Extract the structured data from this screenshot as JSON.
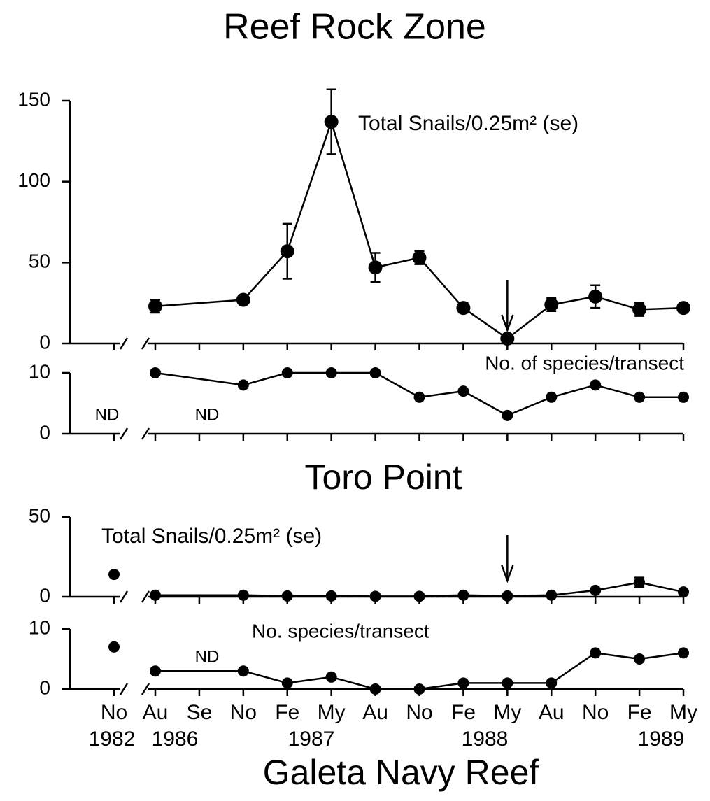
{
  "chart_data": [
    {
      "type": "line",
      "title": "Reef Rock Zone",
      "label": "Total Snails/0.25m² (se)",
      "color": "#000000",
      "values": [
        null,
        23,
        null,
        27,
        57,
        137,
        47,
        53,
        22,
        3,
        24,
        29,
        21,
        22
      ],
      "errors": [
        null,
        4,
        null,
        2,
        17,
        20,
        9,
        4,
        3,
        1,
        4,
        7,
        4,
        3
      ],
      "ylim": [
        0,
        150
      ],
      "yticks": [
        0,
        50,
        100,
        150
      ],
      "arrow_at": 9
    },
    {
      "type": "line",
      "label": "No. of species/transect",
      "color": "#000000",
      "values": [
        null,
        10,
        null,
        8,
        10,
        10,
        10,
        6,
        7,
        3,
        6,
        8,
        6,
        6
      ],
      "ylim": [
        0,
        10
      ],
      "yticks": [
        0,
        10
      ],
      "annotations": [
        "ND",
        "ND"
      ]
    },
    {
      "type": "line",
      "title": "Toro Point",
      "label": "Total Snails/0.25m² (se)",
      "color": "#000000",
      "values": [
        14,
        1,
        null,
        1,
        0.5,
        0.5,
        0.3,
        0.3,
        1,
        0.5,
        1,
        4,
        9,
        3
      ],
      "errors": [
        0.5,
        0.5,
        null,
        0.5,
        0.5,
        0.5,
        0.3,
        0.3,
        0.5,
        0.5,
        0.5,
        1,
        3,
        1
      ],
      "ylim": [
        0,
        50
      ],
      "yticks": [
        0,
        50
      ],
      "arrow_at": 9
    },
    {
      "type": "line",
      "label": "No. species/transect",
      "color": "#000000",
      "values": [
        7,
        3,
        null,
        3,
        1,
        2,
        0,
        0,
        1,
        1,
        1,
        6,
        5,
        6
      ],
      "ylim": [
        0,
        10
      ],
      "yticks": [
        0,
        10
      ],
      "annotations": [
        "ND"
      ],
      "categories": [
        "No",
        "Au",
        "Se",
        "No",
        "Fe",
        "My",
        "Au",
        "No",
        "Fe",
        "My",
        "Au",
        "No",
        "Fe",
        "My"
      ],
      "years": [
        "1982",
        "1986",
        "1987",
        "1988",
        "1989"
      ],
      "xlabel": "Galeta Navy Reef"
    }
  ]
}
